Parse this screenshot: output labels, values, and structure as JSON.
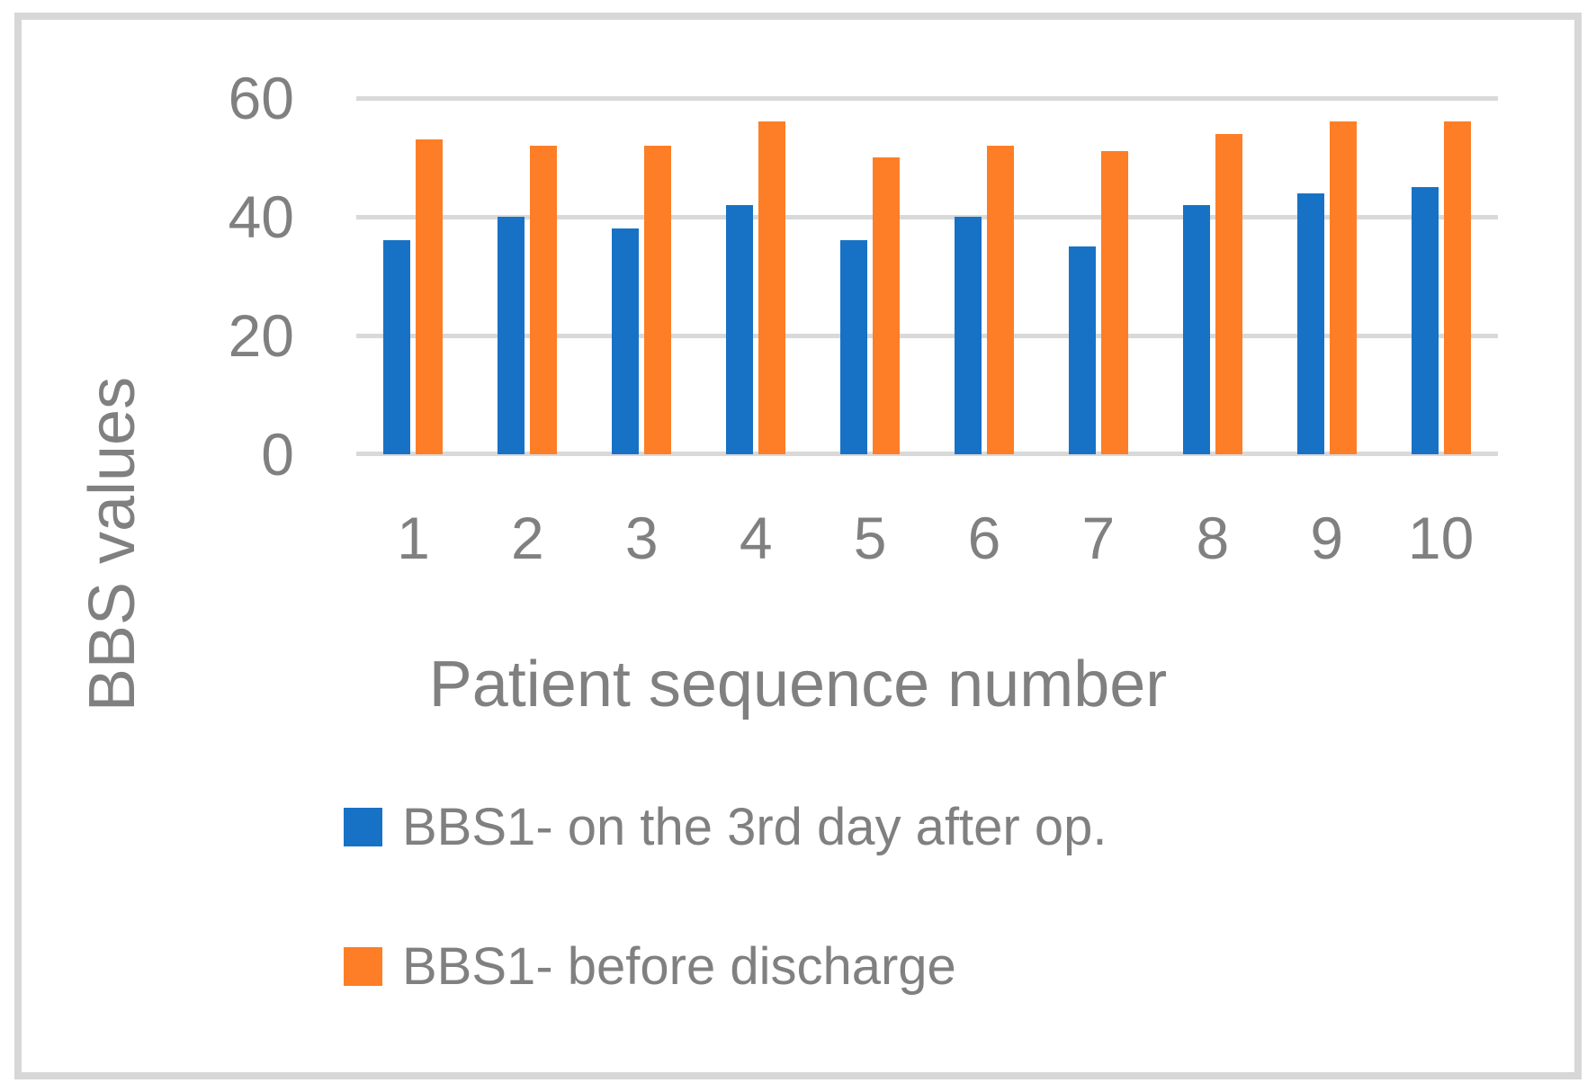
{
  "figure": {
    "background": "#FFFFFF",
    "border_color": "#D7D7D7"
  },
  "chart_data": {
    "type": "bar",
    "title": "",
    "categories": [
      "1",
      "2",
      "3",
      "4",
      "5",
      "6",
      "7",
      "8",
      "9",
      "10"
    ],
    "series": [
      {
        "name": "BBS1- on the 3rd day after op.",
        "color": "#1772C6",
        "values": [
          36,
          40,
          38,
          42,
          36,
          40,
          35,
          42,
          44,
          45
        ]
      },
      {
        "name": "BBS1- before discharge",
        "color": "#FD7E26",
        "values": [
          53,
          52,
          52,
          56,
          50,
          52,
          51,
          54,
          56,
          56
        ]
      }
    ],
    "xlabel": "Patient sequence number",
    "ylabel": "BBS values",
    "ylim": [
      0,
      60
    ],
    "yticks": [
      60,
      40,
      20,
      0
    ],
    "grid": "horizontal",
    "gridline_color": "#D9D9D9",
    "text_color": "#808080",
    "legend_position": "bottom-left"
  }
}
